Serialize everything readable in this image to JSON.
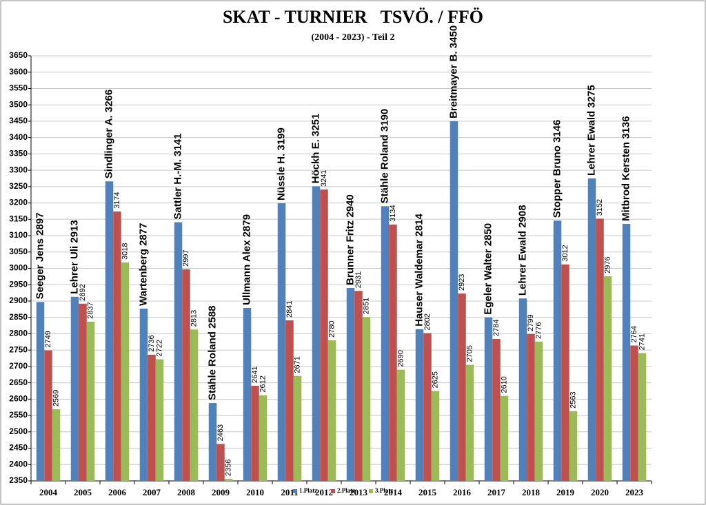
{
  "chart_data": {
    "type": "bar",
    "title": "SKAT - TURNIER   TSVÖ. / FFÖ",
    "subtitle": "(2004 - 2023) - Teil 2",
    "categories": [
      "2004",
      "2005",
      "2006",
      "2007",
      "2008",
      "2009",
      "2010",
      "2011",
      "2012",
      "2013",
      "2014",
      "2015",
      "2016",
      "2017",
      "2018",
      "2019",
      "2020",
      "2023"
    ],
    "series": [
      {
        "name": "1.Platz",
        "color": "#4f81bd",
        "values": [
          2897,
          2913,
          3266,
          2877,
          3141,
          2588,
          2879,
          3199,
          3251,
          2940,
          3190,
          2814,
          3450,
          2850,
          2908,
          3146,
          3275,
          3136
        ],
        "value_labels": [
          "Seeger Jens  2897",
          "Lehrer Uli  2913",
          "Sindlinger A.  3266",
          "Wartenberg 2877",
          "Sattler H.-M. 3141",
          "Stähle Roland  2588",
          "Ullmann Alex  2879",
          "Nüssle H.  3199",
          "Höckh E.  3251",
          "Brunner Fritz  2940",
          "Stähle Roland  3190",
          "Hauser Waldemar 2814",
          "Breitmayer B. 3450",
          "Egeler Walter  2850",
          "Lehrer Ewald  2908",
          "Stopper Bruno  3146",
          "Lehrer Ewald  3275",
          "Mitbrod Kersten 3136"
        ]
      },
      {
        "name": "2.Platz",
        "color": "#c0504d",
        "values": [
          2749,
          2892,
          3174,
          2736,
          2997,
          2463,
          2641,
          2841,
          3241,
          2931,
          3134,
          2802,
          2923,
          2784,
          2799,
          3012,
          3152,
          2764
        ]
      },
      {
        "name": "3.Platz",
        "color": "#9bbb59",
        "values": [
          2569,
          2837,
          3018,
          2722,
          2813,
          2356,
          2612,
          2671,
          2780,
          2851,
          2690,
          2625,
          2705,
          2610,
          2776,
          2563,
          2976,
          2741
        ]
      }
    ],
    "ylim": [
      2350,
      3650
    ],
    "yticks": [
      2350,
      2400,
      2450,
      2500,
      2550,
      2600,
      2650,
      2700,
      2750,
      2800,
      2850,
      2900,
      2950,
      3000,
      3050,
      3100,
      3150,
      3200,
      3250,
      3300,
      3350,
      3400,
      3450,
      3500,
      3550,
      3600,
      3650
    ],
    "grid": true,
    "legend": "bottom"
  }
}
